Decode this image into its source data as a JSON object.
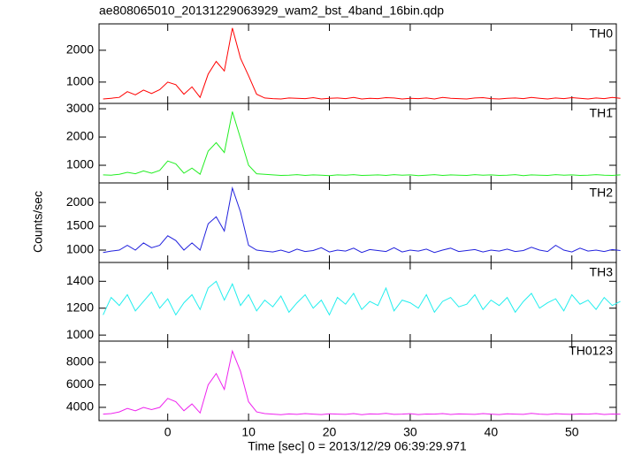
{
  "title": "ae808065010_20131229063929_wam2_bst_4band_16bin.qdp",
  "xlabel": "Time [sec] 0 = 2013/12/29 06:39:29.971",
  "ylabel": "Counts/sec",
  "chart_data": [
    {
      "type": "line",
      "label": "TH0",
      "color": "#ff0000",
      "x": [
        -8,
        -7,
        -6,
        -5,
        -4,
        -3,
        -2,
        -1,
        0,
        1,
        2,
        3,
        4,
        5,
        6,
        7,
        8,
        9,
        10,
        11,
        12,
        13,
        14,
        15,
        16,
        17,
        18,
        19,
        20,
        21,
        22,
        23,
        24,
        25,
        26,
        27,
        28,
        29,
        30,
        31,
        32,
        33,
        34,
        35,
        36,
        37,
        38,
        39,
        40,
        41,
        42,
        43,
        44,
        45,
        46,
        47,
        48,
        49,
        50,
        51,
        52,
        53,
        54,
        55,
        56
      ],
      "values": [
        470,
        490,
        520,
        700,
        600,
        750,
        640,
        760,
        1000,
        920,
        620,
        850,
        520,
        1250,
        1650,
        1350,
        2700,
        1750,
        1200,
        620,
        500,
        480,
        470,
        500,
        490,
        480,
        510,
        470,
        490,
        500,
        480,
        520,
        470,
        490,
        480,
        510,
        500,
        470,
        490,
        480,
        500,
        470,
        520,
        490,
        480,
        470,
        500,
        510,
        480,
        470,
        490,
        500,
        480,
        520,
        490,
        470,
        500,
        480,
        510,
        490,
        470,
        500,
        480,
        520,
        490
      ],
      "xlim": [
        -8.5,
        55.5
      ],
      "xticks": [
        0,
        10,
        20,
        30,
        40,
        50
      ],
      "ylim": [
        330,
        2830
      ],
      "yticks": [
        1000,
        2000
      ]
    },
    {
      "type": "line",
      "label": "TH1",
      "color": "#22ee22",
      "x": [
        -8,
        -7,
        -6,
        -5,
        -4,
        -3,
        -2,
        -1,
        0,
        1,
        2,
        3,
        4,
        5,
        6,
        7,
        8,
        9,
        10,
        11,
        12,
        13,
        14,
        15,
        16,
        17,
        18,
        19,
        20,
        21,
        22,
        23,
        24,
        25,
        26,
        27,
        28,
        29,
        30,
        31,
        32,
        33,
        34,
        35,
        36,
        37,
        38,
        39,
        40,
        41,
        42,
        43,
        44,
        45,
        46,
        47,
        48,
        49,
        50,
        51,
        52,
        53,
        54,
        55,
        56
      ],
      "values": [
        660,
        650,
        680,
        750,
        700,
        800,
        720,
        820,
        1150,
        1050,
        720,
        900,
        680,
        1500,
        1800,
        1450,
        2900,
        1950,
        1000,
        700,
        680,
        660,
        640,
        650,
        670,
        640,
        660,
        650,
        630,
        660,
        650,
        670,
        640,
        650,
        660,
        640,
        670,
        650,
        660,
        630,
        650,
        670,
        640,
        660,
        650,
        640,
        670,
        650,
        660,
        640,
        650,
        670,
        630,
        660,
        650,
        640,
        670,
        650,
        660,
        640,
        650,
        670,
        650,
        640,
        660
      ],
      "xlim": [
        -8.5,
        55.5
      ],
      "xticks": [
        0,
        10,
        20,
        30,
        40,
        50
      ],
      "ylim": [
        375,
        3190
      ],
      "yticks": [
        1000,
        2000,
        3000
      ]
    },
    {
      "type": "line",
      "label": "TH2",
      "color": "#2222dd",
      "x": [
        -8,
        -7,
        -6,
        -5,
        -4,
        -3,
        -2,
        -1,
        0,
        1,
        2,
        3,
        4,
        5,
        6,
        7,
        8,
        9,
        10,
        11,
        12,
        13,
        14,
        15,
        16,
        17,
        18,
        19,
        20,
        21,
        22,
        23,
        24,
        25,
        26,
        27,
        28,
        29,
        30,
        31,
        32,
        33,
        34,
        35,
        36,
        37,
        38,
        39,
        40,
        41,
        42,
        43,
        44,
        45,
        46,
        47,
        48,
        49,
        50,
        51,
        52,
        53,
        54,
        55,
        56
      ],
      "values": [
        950,
        980,
        1000,
        1100,
        1000,
        1150,
        1050,
        1100,
        1300,
        1200,
        1000,
        1150,
        1000,
        1550,
        1700,
        1400,
        2300,
        1800,
        1100,
        1000,
        980,
        960,
        1000,
        950,
        1020,
        970,
        990,
        1050,
        960,
        1000,
        980,
        1040,
        950,
        1010,
        990,
        970,
        1050,
        960,
        1000,
        980,
        1020,
        950,
        1000,
        1040,
        970,
        990,
        1010,
        960,
        1000,
        980,
        1020,
        970,
        990,
        1060,
        1000,
        970,
        1100,
        1000,
        960,
        1040,
        980,
        1000,
        970,
        1010,
        990
      ],
      "xlim": [
        -8.5,
        55.5
      ],
      "xticks": [
        0,
        10,
        20,
        30,
        40,
        50
      ],
      "ylim": [
        740,
        2410
      ],
      "yticks": [
        1000,
        1500,
        2000
      ]
    },
    {
      "type": "line",
      "label": "TH3",
      "color": "#22eeee",
      "x": [
        -8,
        -7,
        -6,
        -5,
        -4,
        -3,
        -2,
        -1,
        0,
        1,
        2,
        3,
        4,
        5,
        6,
        7,
        8,
        9,
        10,
        11,
        12,
        13,
        14,
        15,
        16,
        17,
        18,
        19,
        20,
        21,
        22,
        23,
        24,
        25,
        26,
        27,
        28,
        29,
        30,
        31,
        32,
        33,
        34,
        35,
        36,
        37,
        38,
        39,
        40,
        41,
        42,
        43,
        44,
        45,
        46,
        47,
        48,
        49,
        50,
        51,
        52,
        53,
        54,
        55,
        56
      ],
      "values": [
        1150,
        1280,
        1220,
        1300,
        1180,
        1250,
        1320,
        1200,
        1270,
        1150,
        1240,
        1300,
        1190,
        1350,
        1400,
        1260,
        1380,
        1220,
        1300,
        1180,
        1260,
        1210,
        1290,
        1170,
        1240,
        1300,
        1200,
        1260,
        1150,
        1280,
        1230,
        1310,
        1190,
        1250,
        1220,
        1350,
        1180,
        1260,
        1240,
        1200,
        1300,
        1170,
        1250,
        1280,
        1210,
        1230,
        1300,
        1190,
        1260,
        1220,
        1280,
        1170,
        1250,
        1310,
        1200,
        1240,
        1270,
        1180,
        1300,
        1230,
        1260,
        1190,
        1280,
        1220,
        1250
      ],
      "xlim": [
        -8.5,
        55.5
      ],
      "xticks": [
        0,
        10,
        20,
        30,
        40,
        50
      ],
      "ylim": [
        955,
        1540
      ],
      "yticks": [
        1000,
        1200,
        1400
      ]
    },
    {
      "type": "line",
      "label": "TH0123",
      "color": "#ee22ee",
      "x": [
        -8,
        -7,
        -6,
        -5,
        -4,
        -3,
        -2,
        -1,
        0,
        1,
        2,
        3,
        4,
        5,
        6,
        7,
        8,
        9,
        10,
        11,
        12,
        13,
        14,
        15,
        16,
        17,
        18,
        19,
        20,
        21,
        22,
        23,
        24,
        25,
        26,
        27,
        28,
        29,
        30,
        31,
        32,
        33,
        34,
        35,
        36,
        37,
        38,
        39,
        40,
        41,
        42,
        43,
        44,
        45,
        46,
        47,
        48,
        49,
        50,
        51,
        52,
        53,
        54,
        55,
        56
      ],
      "values": [
        3400,
        3450,
        3600,
        3900,
        3700,
        4000,
        3800,
        4000,
        4800,
        4500,
        3700,
        4300,
        3500,
        6000,
        7000,
        5600,
        9000,
        7200,
        4500,
        3600,
        3450,
        3400,
        3350,
        3420,
        3380,
        3450,
        3400,
        3360,
        3430,
        3400,
        3380,
        3450,
        3350,
        3420,
        3400,
        3470,
        3380,
        3400,
        3440,
        3360,
        3410,
        3400,
        3450,
        3370,
        3420,
        3400,
        3380,
        3450,
        3400,
        3360,
        3430,
        3400,
        3380,
        3460,
        3400,
        3370,
        3440,
        3400,
        3380,
        3420,
        3400,
        3450,
        3370,
        3410,
        3400
      ],
      "xlim": [
        -8.5,
        55.5
      ],
      "xticks": [
        0,
        10,
        20,
        30,
        40,
        50
      ],
      "ylim": [
        2820,
        9880
      ],
      "yticks": [
        4000,
        6000,
        8000
      ]
    }
  ]
}
